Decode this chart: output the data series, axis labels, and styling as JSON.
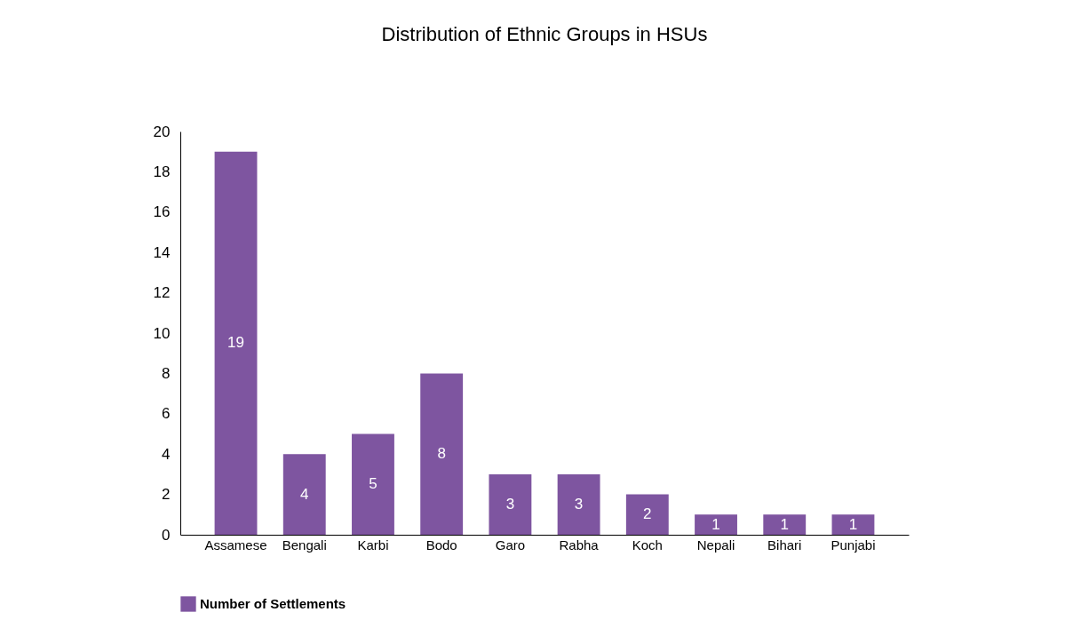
{
  "chart_data": {
    "type": "bar",
    "title": "Distribution of Ethnic Groups in HSUs",
    "categories": [
      "Assamese",
      "Bengali",
      "Karbi",
      "Bodo",
      "Garo",
      "Rabha",
      "Koch",
      "Nepali",
      "Bihari",
      "Punjabi"
    ],
    "series": [
      {
        "name": "Number of Settlements",
        "color": "#7e55a0",
        "values": [
          19,
          4,
          5,
          8,
          3,
          3,
          2,
          1,
          1,
          1
        ]
      }
    ],
    "ylim": [
      0,
      20
    ],
    "yticks": [
      0,
      2,
      4,
      6,
      8,
      10,
      12,
      14,
      16,
      18,
      20
    ],
    "data_labels": true,
    "legend": "bottom",
    "grid": false
  }
}
